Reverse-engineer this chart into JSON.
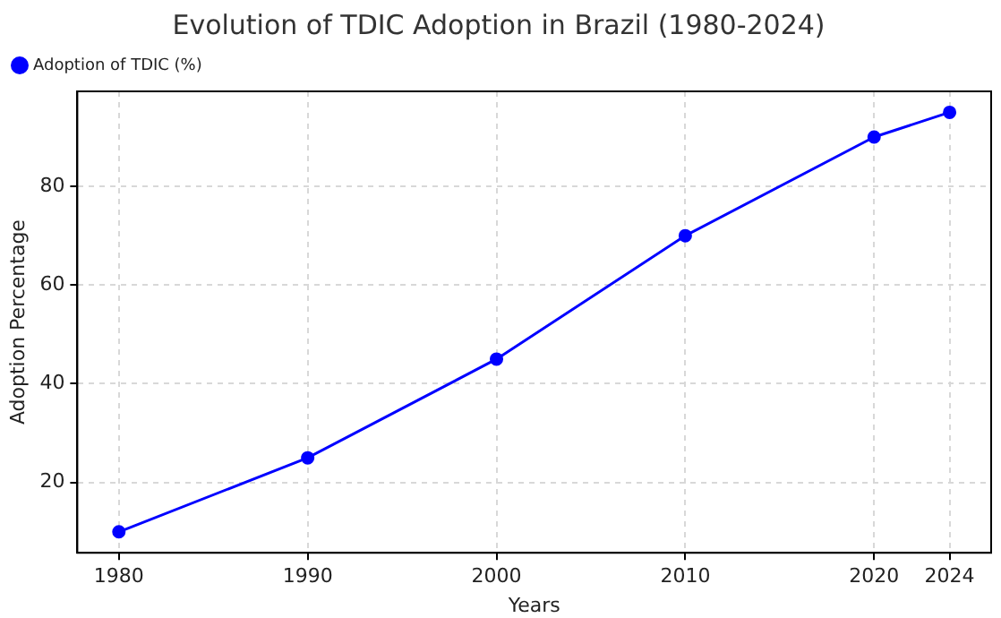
{
  "chart_data": {
    "type": "line",
    "title": "Evolution of TDIC Adoption in Brazil (1980-2024)",
    "xlabel": "Years",
    "ylabel": "Adoption Percentage",
    "x": [
      1980,
      1990,
      2000,
      2010,
      2020,
      2024
    ],
    "series": [
      {
        "name": "Adoption of TDIC (%)",
        "color": "#0000ff",
        "values": [
          10,
          25,
          45,
          70,
          90,
          95
        ]
      }
    ],
    "xlim": [
      1977.8,
      2026.2
    ],
    "xticks": [
      1980,
      1990,
      2000,
      2010,
      2020,
      2024
    ],
    "ylim": [
      5.75,
      99.25
    ],
    "yticks": [
      20,
      40,
      60,
      80
    ],
    "grid": true,
    "legend": "top left",
    "marker": "circle",
    "line_style": "solid"
  }
}
